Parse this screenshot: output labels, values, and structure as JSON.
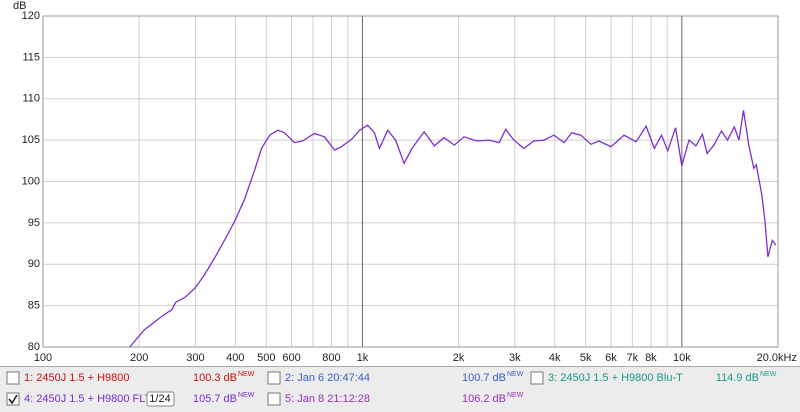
{
  "chart_data": {
    "type": "line",
    "y_label": "dB",
    "xscale": "log",
    "grid": true,
    "xlim": [
      100,
      20000
    ],
    "ylim": [
      80,
      120
    ],
    "yticks": [
      80,
      85,
      90,
      95,
      100,
      105,
      110,
      115,
      120
    ],
    "xticks": [
      100,
      200,
      300,
      400,
      500,
      600,
      {
        "value": 700,
        "label": null
      },
      800,
      {
        "value": 900,
        "label": null
      },
      {
        "value": 1000,
        "label": "1k"
      },
      {
        "value": 2000,
        "label": "2k"
      },
      {
        "value": 3000,
        "label": "3k"
      },
      {
        "value": 4000,
        "label": "4k"
      },
      {
        "value": 5000,
        "label": "5k"
      },
      {
        "value": 6000,
        "label": "6k"
      },
      {
        "value": 7000,
        "label": "7k"
      },
      {
        "value": 8000,
        "label": "8k"
      },
      {
        "value": 9000,
        "label": null
      },
      {
        "value": 10000,
        "label": "10k"
      },
      {
        "value": 20000,
        "label": "20.0kHz"
      }
    ],
    "series": [
      {
        "color": "#7b2fd1",
        "x": [
          187,
          208,
          232,
          246,
          253,
          260,
          278,
          299,
          320,
          345,
          370,
          397,
          427,
          460,
          483,
          512,
          543,
          570,
          613,
          649,
          708,
          760,
          818,
          860,
          925,
          980,
          1038,
          1090,
          1130,
          1200,
          1270,
          1350,
          1430,
          1560,
          1680,
          1800,
          1940,
          2080,
          2280,
          2490,
          2680,
          2810,
          2980,
          3200,
          3440,
          3700,
          3980,
          4280,
          4520,
          4830,
          5190,
          5500,
          6000,
          6590,
          7190,
          7730,
          8200,
          8640,
          9030,
          9560,
          10000,
          10530,
          11070,
          11600,
          12000,
          12600,
          13300,
          13900,
          14600,
          15100,
          15600,
          16200,
          16800,
          17100,
          17800,
          18200,
          18600,
          19200,
          19700
        ],
        "values": [
          80.0,
          82.1,
          83.5,
          84.2,
          84.5,
          85.4,
          86.0,
          87.1,
          88.7,
          90.8,
          92.9,
          95.1,
          97.8,
          101.4,
          104.0,
          105.6,
          106.2,
          105.9,
          104.7,
          104.9,
          105.8,
          105.4,
          103.8,
          104.2,
          105.1,
          106.2,
          106.8,
          105.9,
          104.0,
          106.2,
          105.0,
          102.2,
          104.0,
          106.0,
          104.3,
          105.3,
          104.4,
          105.4,
          104.9,
          105.0,
          104.7,
          106.3,
          105.0,
          104.0,
          104.9,
          105.0,
          105.6,
          104.7,
          105.9,
          105.6,
          104.5,
          104.9,
          104.2,
          105.6,
          104.8,
          106.7,
          104.0,
          105.6,
          103.7,
          106.5,
          101.9,
          105.0,
          104.3,
          105.7,
          103.4,
          104.4,
          106.1,
          105.0,
          106.6,
          105.0,
          108.6,
          104.4,
          101.6,
          102.0,
          98.4,
          95.3,
          90.9,
          92.9,
          92.3
        ]
      }
    ]
  },
  "traces": [
    {
      "label": "1: 2450J 1.5 + H9800",
      "color": "#d01010",
      "checked": false,
      "level": "100.3 dB",
      "note": "NEW"
    },
    {
      "label": "2: Jan 6 20:47:44",
      "color": "#3a5fcd",
      "checked": false,
      "level": "100.7 dB",
      "note": "NEW"
    },
    {
      "label": "3: 2450J 1.5 + H9800 Blu-T",
      "color": "#1a9a8a",
      "checked": false,
      "level": "114.9 dB",
      "note": "NEW"
    },
    {
      "label": "4: 2450J 1.5 + H9800 FLT",
      "color": "#7b2fd1",
      "checked": true,
      "smoothing": "1/24",
      "level": "105.7 dB",
      "note": "NEW"
    },
    {
      "label": "5: Jan 8 21:12:28",
      "color": "#9a2fc0",
      "checked": false,
      "level": "106.2 dB",
      "note": "NEW"
    }
  ]
}
